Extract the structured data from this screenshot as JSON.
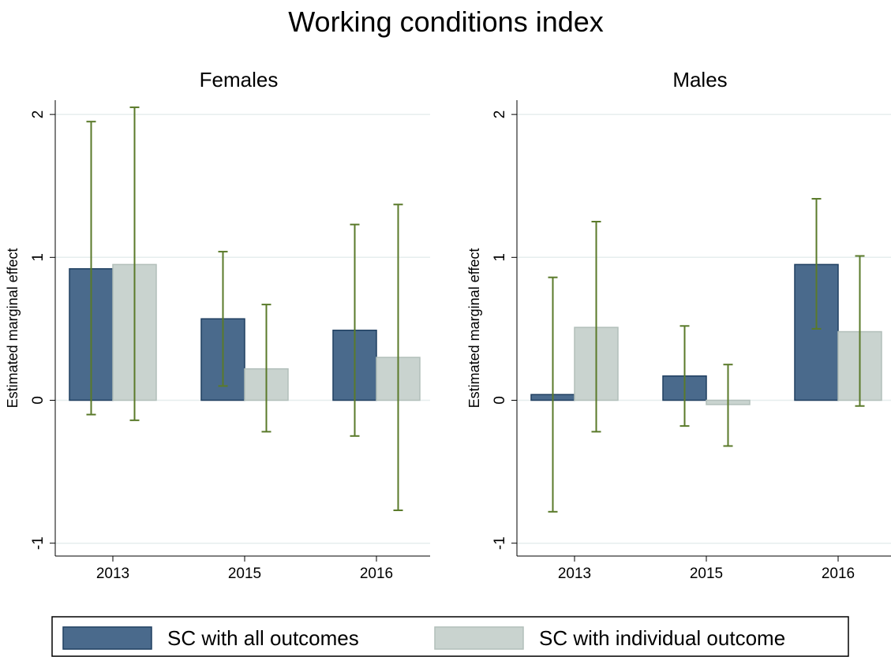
{
  "title": "Working conditions index",
  "chart_data": [
    {
      "type": "bar",
      "title": "Females",
      "y_label": "Estimated marginal effect",
      "categories": [
        "2013",
        "2015",
        "2016"
      ],
      "series": [
        {
          "name": "SC with all outcomes",
          "color": "#4a6a8c",
          "values": [
            0.92,
            0.57,
            0.49
          ],
          "ci_low": [
            -0.1,
            0.1,
            -0.25
          ],
          "ci_high": [
            1.95,
            1.04,
            1.23
          ]
        },
        {
          "name": "SC with individual outcome",
          "color": "#c9d3cf",
          "values": [
            0.95,
            0.22,
            0.3
          ],
          "ci_low": [
            -0.14,
            -0.22,
            -0.77
          ],
          "ci_high": [
            2.05,
            0.67,
            1.37
          ]
        }
      ],
      "ylim": [
        -1.09,
        2.1
      ],
      "yticks": [
        -1,
        0,
        1,
        2
      ],
      "grid": true,
      "error_color": "#5a7a2a"
    },
    {
      "type": "bar",
      "title": "Males",
      "y_label": "Estimated marginal effect",
      "categories": [
        "2013",
        "2015",
        "2016"
      ],
      "series": [
        {
          "name": "SC with all outcomes",
          "color": "#4a6a8c",
          "values": [
            0.04,
            0.17,
            0.95
          ],
          "ci_low": [
            -0.78,
            -0.18,
            0.5
          ],
          "ci_high": [
            0.86,
            0.52,
            1.41
          ]
        },
        {
          "name": "SC with individual outcome",
          "color": "#c9d3cf",
          "values": [
            0.51,
            -0.03,
            0.48
          ],
          "ci_low": [
            -0.22,
            -0.32,
            -0.04
          ],
          "ci_high": [
            1.25,
            0.25,
            1.01
          ]
        }
      ],
      "ylim": [
        -1.09,
        2.1
      ],
      "yticks": [
        -1,
        0,
        1,
        2
      ],
      "grid": true,
      "error_color": "#5a7a2a"
    }
  ]
}
